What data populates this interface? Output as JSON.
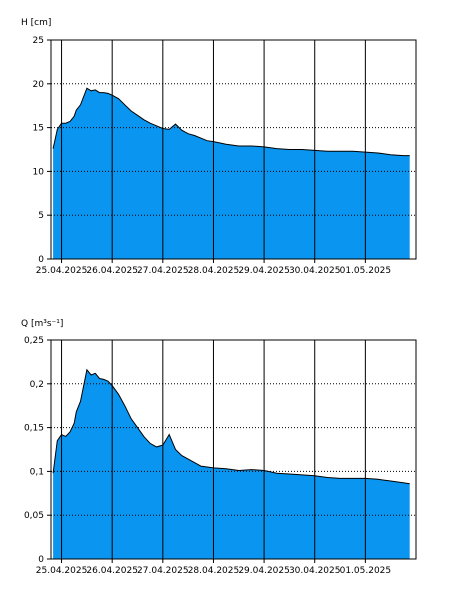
{
  "chart_data": [
    {
      "type": "area",
      "ylabel": "H [cm]",
      "ylim": [
        0,
        25
      ],
      "yticks": [
        0,
        5,
        10,
        15,
        20,
        25
      ],
      "ytick_labels": [
        "0",
        "5",
        "10",
        "15",
        "20",
        "25"
      ],
      "xlim": [
        "2025-04-24T19:00",
        "2025-05-02T00:00"
      ],
      "xticks": [
        "2025-04-25",
        "2025-04-26",
        "2025-04-27",
        "2025-04-28",
        "2025-04-29",
        "2025-04-30",
        "2025-05-01"
      ],
      "xtick_labels": [
        "25.04.2025",
        "26.04.2025",
        "27.04.2025",
        "28.04.2025",
        "29.04.2025",
        "30.04.2025",
        "01.05.2025"
      ],
      "grid": true,
      "fill_color": "#0A96F0",
      "x": [
        "2025-04-24T20:00",
        "2025-04-24T22:00",
        "2025-04-25T00:00",
        "2025-04-25T02:00",
        "2025-04-25T04:00",
        "2025-04-25T06:00",
        "2025-04-25T07:00",
        "2025-04-25T09:00",
        "2025-04-25T12:00",
        "2025-04-25T14:00",
        "2025-04-25T16:00",
        "2025-04-25T18:00",
        "2025-04-25T20:00",
        "2025-04-25T22:00",
        "2025-04-26T00:00",
        "2025-04-26T03:00",
        "2025-04-26T06:00",
        "2025-04-26T09:00",
        "2025-04-26T12:00",
        "2025-04-26T15:00",
        "2025-04-26T18:00",
        "2025-04-26T21:00",
        "2025-04-27T00:00",
        "2025-04-27T03:00",
        "2025-04-27T06:00",
        "2025-04-27T09:00",
        "2025-04-27T12:00",
        "2025-04-27T15:00",
        "2025-04-27T18:00",
        "2025-04-27T21:00",
        "2025-04-28T00:00",
        "2025-04-28T06:00",
        "2025-04-28T12:00",
        "2025-04-28T18:00",
        "2025-04-29T00:00",
        "2025-04-29T06:00",
        "2025-04-29T12:00",
        "2025-04-29T18:00",
        "2025-04-30T00:00",
        "2025-04-30T06:00",
        "2025-04-30T12:00",
        "2025-04-30T18:00",
        "2025-05-01T00:00",
        "2025-05-01T06:00",
        "2025-05-01T12:00",
        "2025-05-01T18:00",
        "2025-05-01T21:00"
      ],
      "values": [
        12.6,
        14.8,
        15.5,
        15.5,
        15.7,
        16.3,
        17.0,
        17.6,
        19.5,
        19.2,
        19.3,
        19.0,
        19.0,
        18.9,
        18.7,
        18.3,
        17.6,
        16.9,
        16.4,
        15.9,
        15.5,
        15.2,
        14.9,
        14.8,
        15.4,
        14.7,
        14.3,
        14.1,
        13.8,
        13.5,
        13.4,
        13.1,
        12.9,
        12.9,
        12.8,
        12.6,
        12.5,
        12.5,
        12.4,
        12.3,
        12.3,
        12.3,
        12.2,
        12.1,
        11.9,
        11.8,
        11.8
      ]
    },
    {
      "type": "area",
      "ylabel": "Q [m³s⁻¹]",
      "ylim": [
        0,
        0.25
      ],
      "yticks": [
        0,
        0.05,
        0.1,
        0.15,
        0.2,
        0.25
      ],
      "ytick_labels": [
        "0",
        "0,05",
        "0,1",
        "0,15",
        "0,2",
        "0,25"
      ],
      "xlim": [
        "2025-04-24T19:00",
        "2025-05-02T00:00"
      ],
      "xticks": [
        "2025-04-25",
        "2025-04-26",
        "2025-04-27",
        "2025-04-28",
        "2025-04-29",
        "2025-04-30",
        "2025-05-01"
      ],
      "xtick_labels": [
        "25.04.2025",
        "26.04.2025",
        "27.04.2025",
        "28.04.2025",
        "29.04.2025",
        "30.04.2025",
        "01.05.2025"
      ],
      "grid": true,
      "fill_color": "#0A96F0",
      "x": [
        "2025-04-24T20:00",
        "2025-04-24T22:00",
        "2025-04-25T00:00",
        "2025-04-25T02:00",
        "2025-04-25T04:00",
        "2025-04-25T06:00",
        "2025-04-25T07:00",
        "2025-04-25T09:00",
        "2025-04-25T12:00",
        "2025-04-25T14:00",
        "2025-04-25T16:00",
        "2025-04-25T18:00",
        "2025-04-25T20:00",
        "2025-04-25T22:00",
        "2025-04-26T00:00",
        "2025-04-26T03:00",
        "2025-04-26T06:00",
        "2025-04-26T09:00",
        "2025-04-26T12:00",
        "2025-04-26T15:00",
        "2025-04-26T18:00",
        "2025-04-26T21:00",
        "2025-04-27T00:00",
        "2025-04-27T03:00",
        "2025-04-27T06:00",
        "2025-04-27T09:00",
        "2025-04-27T12:00",
        "2025-04-27T15:00",
        "2025-04-27T18:00",
        "2025-04-27T21:00",
        "2025-04-28T00:00",
        "2025-04-28T06:00",
        "2025-04-28T12:00",
        "2025-04-28T18:00",
        "2025-04-29T00:00",
        "2025-04-29T06:00",
        "2025-04-29T12:00",
        "2025-04-29T18:00",
        "2025-04-30T00:00",
        "2025-04-30T06:00",
        "2025-04-30T12:00",
        "2025-04-30T18:00",
        "2025-05-01T00:00",
        "2025-05-01T06:00",
        "2025-05-01T12:00",
        "2025-05-01T18:00",
        "2025-05-01T21:00"
      ],
      "values": [
        0.098,
        0.135,
        0.142,
        0.14,
        0.145,
        0.155,
        0.168,
        0.18,
        0.216,
        0.21,
        0.212,
        0.206,
        0.205,
        0.203,
        0.198,
        0.188,
        0.175,
        0.16,
        0.15,
        0.14,
        0.132,
        0.128,
        0.13,
        0.142,
        0.125,
        0.118,
        0.114,
        0.11,
        0.106,
        0.105,
        0.104,
        0.103,
        0.101,
        0.102,
        0.101,
        0.098,
        0.097,
        0.096,
        0.095,
        0.093,
        0.092,
        0.092,
        0.092,
        0.091,
        0.089,
        0.087,
        0.086
      ]
    }
  ]
}
